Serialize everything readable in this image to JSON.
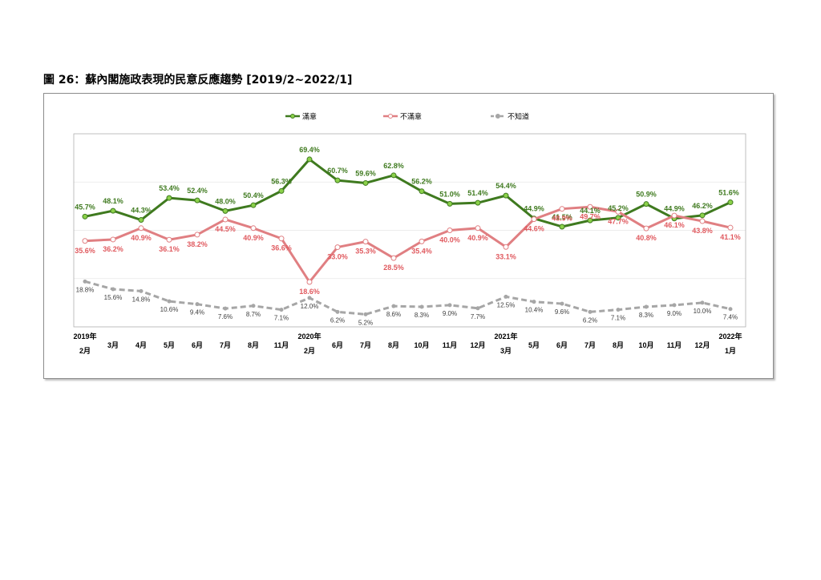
{
  "figure_title": "圖 26：蘇內閣施政表現的民意反應趨勢 [2019/2~2022/1]",
  "chart_data": {
    "type": "line",
    "categories": [
      [
        "2019年",
        "2月"
      ],
      [
        "",
        "3月"
      ],
      [
        "",
        "4月"
      ],
      [
        "",
        "5月"
      ],
      [
        "",
        "6月"
      ],
      [
        "",
        "7月"
      ],
      [
        "",
        "8月"
      ],
      [
        "",
        "11月"
      ],
      [
        "2020年",
        "2月"
      ],
      [
        "",
        "6月"
      ],
      [
        "",
        "7月"
      ],
      [
        "",
        "8月"
      ],
      [
        "",
        "10月"
      ],
      [
        "",
        "11月"
      ],
      [
        "",
        "12月"
      ],
      [
        "2021年",
        "3月"
      ],
      [
        "",
        "5月"
      ],
      [
        "",
        "6月"
      ],
      [
        "",
        "7月"
      ],
      [
        "",
        "8月"
      ],
      [
        "",
        "10月"
      ],
      [
        "",
        "11月"
      ],
      [
        "",
        "12月"
      ],
      [
        "2022年",
        "1月"
      ]
    ],
    "series": [
      {
        "name": "滿意",
        "color": "#3f7a1f",
        "marker": "#8bd14a",
        "dash": false,
        "values": [
          45.7,
          48.1,
          44.3,
          53.4,
          52.4,
          48.0,
          50.4,
          56.3,
          69.4,
          60.7,
          59.6,
          62.8,
          56.2,
          51.0,
          51.4,
          54.4,
          44.9,
          41.5,
          44.1,
          45.2,
          50.9,
          44.9,
          46.2,
          51.6
        ],
        "labels": [
          "45.7%",
          "48.1%",
          "44.3%",
          "53.4%",
          "52.4%",
          "48.0%",
          "50.4%",
          "56.3%",
          "69.4%",
          "60.7%",
          "59.6%",
          "62.8%",
          "56.2%",
          "51.0%",
          "51.4%",
          "54.4%",
          "44.9%",
          "41.5%",
          "44.1%",
          "45.2%",
          "50.9%",
          "44.9%",
          "46.2%",
          "51.6%"
        ]
      },
      {
        "name": "不滿意",
        "color": "#e07f82",
        "marker": "#ffffff",
        "dash": false,
        "values": [
          35.6,
          36.2,
          40.9,
          36.1,
          38.2,
          44.5,
          40.9,
          36.6,
          18.6,
          33.0,
          35.3,
          28.5,
          35.4,
          40.0,
          40.9,
          33.1,
          44.6,
          48.9,
          49.7,
          47.7,
          40.8,
          46.1,
          43.8,
          41.1
        ],
        "labels": [
          "35.6%",
          "36.2%",
          "40.9%",
          "36.1%",
          "38.2%",
          "44.5%",
          "40.9%",
          "36.6%",
          "18.6%",
          "33.0%",
          "35.3%",
          "28.5%",
          "35.4%",
          "40.0%",
          "40.9%",
          "33.1%",
          "44.6%",
          "48.9%",
          "49.7%",
          "47.7%",
          "40.8%",
          "46.1%",
          "43.8%",
          "41.1%"
        ]
      },
      {
        "name": "不知道",
        "color": "#a6a6a6",
        "marker": "#a6a6a6",
        "dash": true,
        "values": [
          18.8,
          15.6,
          14.8,
          10.6,
          9.4,
          7.6,
          8.7,
          7.1,
          12.0,
          6.2,
          5.2,
          8.6,
          8.3,
          9.0,
          7.7,
          12.5,
          10.4,
          9.6,
          6.2,
          7.1,
          8.3,
          9.0,
          10.0,
          7.4
        ],
        "labels": [
          "18.8%",
          "15.6%",
          "14.8%",
          "10.6%",
          "9.4%",
          "7.6%",
          "8.7%",
          "7.1%",
          "12.0%",
          "6.2%",
          "5.2%",
          "8.6%",
          "8.3%",
          "9.0%",
          "7.7%",
          "12.5%",
          "10.4%",
          "9.6%",
          "6.2%",
          "7.1%",
          "8.3%",
          "9.0%",
          "10.0%",
          "7.4%"
        ]
      }
    ],
    "ylim": [
      0,
      80
    ],
    "grid": true,
    "legend_position": "top"
  }
}
